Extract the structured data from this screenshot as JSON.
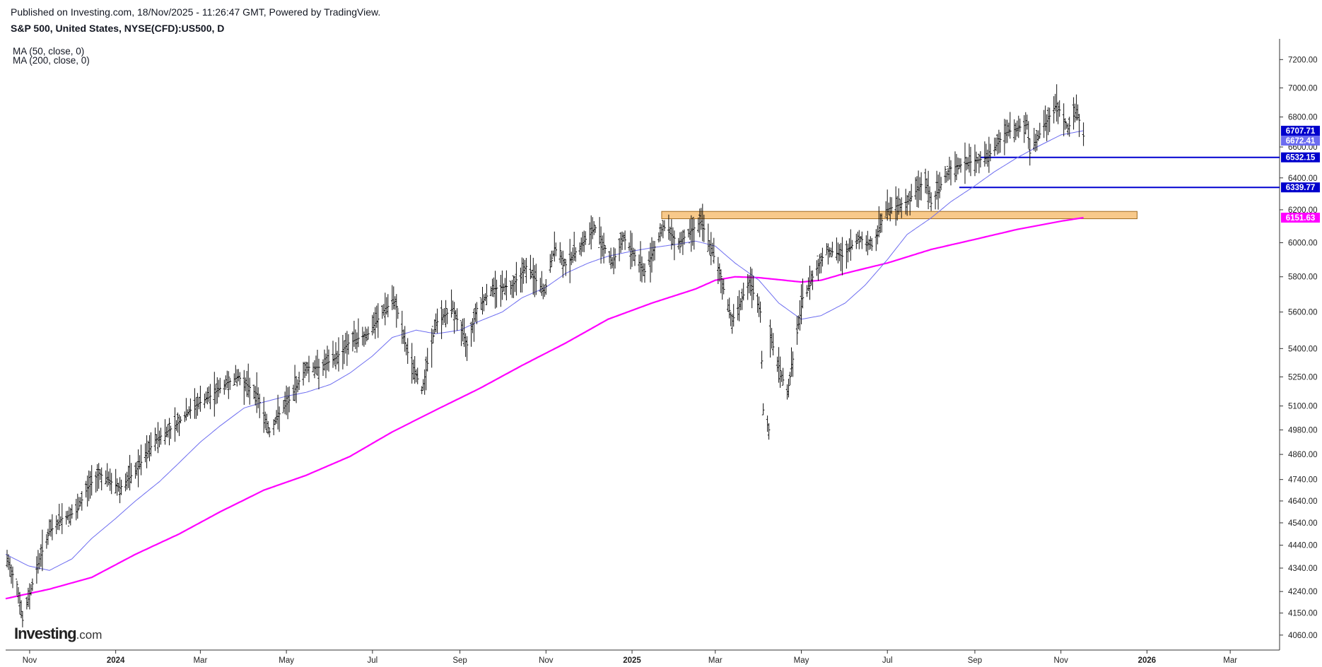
{
  "header": {
    "published": "Published on Investing.com, 18/Nov/2025 - 11:26:47 GMT, Powered by TradingView.",
    "symbol": "S&P 500, United States, NYSE(CFD):US500, D"
  },
  "legend": {
    "ma50": "MA (50, close, 0)",
    "ma200": "MA (200, close, 0)"
  },
  "brand": {
    "main": "Investing",
    "suffix": ".com"
  },
  "chart_data": {
    "type": "line",
    "title": "S&P 500, United States, NYSE(CFD):US500, D",
    "y_scale": "log",
    "ylim": [
      4000,
      7350
    ],
    "xlim": [
      "2023-10-15",
      "2026-04-05"
    ],
    "x_ticks": [
      {
        "date": "2023-11-01",
        "label": "Nov",
        "bold": false
      },
      {
        "date": "2024-01-01",
        "label": "2024",
        "bold": true
      },
      {
        "date": "2024-03-01",
        "label": "Mar",
        "bold": false
      },
      {
        "date": "2024-05-01",
        "label": "May",
        "bold": false
      },
      {
        "date": "2024-07-01",
        "label": "Jul",
        "bold": false
      },
      {
        "date": "2024-09-01",
        "label": "Sep",
        "bold": false
      },
      {
        "date": "2024-11-01",
        "label": "Nov",
        "bold": false
      },
      {
        "date": "2025-01-01",
        "label": "2025",
        "bold": true
      },
      {
        "date": "2025-03-01",
        "label": "Mar",
        "bold": false
      },
      {
        "date": "2025-05-01",
        "label": "May",
        "bold": false
      },
      {
        "date": "2025-07-01",
        "label": "Jul",
        "bold": false
      },
      {
        "date": "2025-09-01",
        "label": "Sep",
        "bold": false
      },
      {
        "date": "2025-11-01",
        "label": "Nov",
        "bold": false
      },
      {
        "date": "2026-01-01",
        "label": "2026",
        "bold": true
      },
      {
        "date": "2026-03-01",
        "label": "Mar",
        "bold": false
      }
    ],
    "y_ticks": [
      4060,
      4150,
      4240,
      4340,
      4440,
      4540,
      4640,
      4740,
      4860,
      4980,
      5100,
      5250,
      5400,
      5600,
      5800,
      6000,
      6200,
      6400,
      6600,
      6800,
      7000,
      7200
    ],
    "price_series": {
      "name": "S&P 500",
      "color": "#111111",
      "points": [
        [
          "2023-10-16",
          4370
        ],
        [
          "2023-10-23",
          4270
        ],
        [
          "2023-10-27",
          4120
        ],
        [
          "2023-11-01",
          4230
        ],
        [
          "2023-11-08",
          4380
        ],
        [
          "2023-11-15",
          4500
        ],
        [
          "2023-11-24",
          4560
        ],
        [
          "2023-12-04",
          4590
        ],
        [
          "2023-12-12",
          4700
        ],
        [
          "2023-12-20",
          4770
        ],
        [
          "2024-01-04",
          4700
        ],
        [
          "2024-01-15",
          4780
        ],
        [
          "2024-01-29",
          4930
        ],
        [
          "2024-02-12",
          5000
        ],
        [
          "2024-02-26",
          5100
        ],
        [
          "2024-03-08",
          5150
        ],
        [
          "2024-03-20",
          5220
        ],
        [
          "2024-03-28",
          5250
        ],
        [
          "2024-04-10",
          5160
        ],
        [
          "2024-04-19",
          4970
        ],
        [
          "2024-04-26",
          5060
        ],
        [
          "2024-05-03",
          5130
        ],
        [
          "2024-05-15",
          5300
        ],
        [
          "2024-05-24",
          5300
        ],
        [
          "2024-06-05",
          5350
        ],
        [
          "2024-06-14",
          5430
        ],
        [
          "2024-06-28",
          5480
        ],
        [
          "2024-07-10",
          5620
        ],
        [
          "2024-07-17",
          5660
        ],
        [
          "2024-07-25",
          5400
        ],
        [
          "2024-08-05",
          5180
        ],
        [
          "2024-08-15",
          5540
        ],
        [
          "2024-08-27",
          5620
        ],
        [
          "2024-09-06",
          5420
        ],
        [
          "2024-09-13",
          5620
        ],
        [
          "2024-09-24",
          5730
        ],
        [
          "2024-10-08",
          5750
        ],
        [
          "2024-10-18",
          5860
        ],
        [
          "2024-10-31",
          5710
        ],
        [
          "2024-11-07",
          5970
        ],
        [
          "2024-11-15",
          5870
        ],
        [
          "2024-11-27",
          6000
        ],
        [
          "2024-12-06",
          6090
        ],
        [
          "2024-12-18",
          5880
        ],
        [
          "2024-12-26",
          6030
        ],
        [
          "2025-01-10",
          5830
        ],
        [
          "2025-01-23",
          6100
        ],
        [
          "2025-02-03",
          6000
        ],
        [
          "2025-02-19",
          6130
        ],
        [
          "2025-03-03",
          5850
        ],
        [
          "2025-03-13",
          5550
        ],
        [
          "2025-03-25",
          5770
        ],
        [
          "2025-04-02",
          5600
        ],
        [
          "2025-04-04",
          5080
        ],
        [
          "2025-04-08",
          4980
        ],
        [
          "2025-04-09",
          5460
        ],
        [
          "2025-04-21",
          5160
        ],
        [
          "2025-05-02",
          5680
        ],
        [
          "2025-05-12",
          5850
        ],
        [
          "2025-05-19",
          5960
        ],
        [
          "2025-05-30",
          5920
        ],
        [
          "2025-06-11",
          6030
        ],
        [
          "2025-06-20",
          5980
        ],
        [
          "2025-06-30",
          6200
        ],
        [
          "2025-07-15",
          6250
        ],
        [
          "2025-07-28",
          6390
        ],
        [
          "2025-08-01",
          6240
        ],
        [
          "2025-08-14",
          6460
        ],
        [
          "2025-08-28",
          6500
        ],
        [
          "2025-09-10",
          6530
        ],
        [
          "2025-09-22",
          6690
        ],
        [
          "2025-10-08",
          6750
        ],
        [
          "2025-10-10",
          6560
        ],
        [
          "2025-10-20",
          6740
        ],
        [
          "2025-10-29",
          6890
        ],
        [
          "2025-11-06",
          6720
        ],
        [
          "2025-11-12",
          6850
        ],
        [
          "2025-11-17",
          6672
        ]
      ]
    },
    "ma50": {
      "name": "MA (50, close, 0)",
      "color": "#6d6df0",
      "points": [
        [
          "2023-10-15",
          4400
        ],
        [
          "2023-10-31",
          4350
        ],
        [
          "2023-11-15",
          4330
        ],
        [
          "2023-12-01",
          4380
        ],
        [
          "2023-12-15",
          4470
        ],
        [
          "2024-01-01",
          4560
        ],
        [
          "2024-01-15",
          4640
        ],
        [
          "2024-02-01",
          4730
        ],
        [
          "2024-02-15",
          4820
        ],
        [
          "2024-03-01",
          4920
        ],
        [
          "2024-03-15",
          5000
        ],
        [
          "2024-04-01",
          5090
        ],
        [
          "2024-04-15",
          5120
        ],
        [
          "2024-05-01",
          5150
        ],
        [
          "2024-05-15",
          5170
        ],
        [
          "2024-06-01",
          5210
        ],
        [
          "2024-06-15",
          5270
        ],
        [
          "2024-07-01",
          5360
        ],
        [
          "2024-07-15",
          5460
        ],
        [
          "2024-08-01",
          5500
        ],
        [
          "2024-08-15",
          5480
        ],
        [
          "2024-09-01",
          5500
        ],
        [
          "2024-09-15",
          5550
        ],
        [
          "2024-10-01",
          5600
        ],
        [
          "2024-10-15",
          5680
        ],
        [
          "2024-11-01",
          5740
        ],
        [
          "2024-11-15",
          5820
        ],
        [
          "2024-12-01",
          5880
        ],
        [
          "2024-12-15",
          5920
        ],
        [
          "2025-01-01",
          5950
        ],
        [
          "2025-01-15",
          5970
        ],
        [
          "2025-02-01",
          5990
        ],
        [
          "2025-02-15",
          6010
        ],
        [
          "2025-03-01",
          5980
        ],
        [
          "2025-03-15",
          5880
        ],
        [
          "2025-04-01",
          5780
        ],
        [
          "2025-04-15",
          5650
        ],
        [
          "2025-05-01",
          5560
        ],
        [
          "2025-05-15",
          5580
        ],
        [
          "2025-06-01",
          5650
        ],
        [
          "2025-06-15",
          5750
        ],
        [
          "2025-07-01",
          5900
        ],
        [
          "2025-07-15",
          6050
        ],
        [
          "2025-08-01",
          6150
        ],
        [
          "2025-08-15",
          6250
        ],
        [
          "2025-09-01",
          6350
        ],
        [
          "2025-09-15",
          6440
        ],
        [
          "2025-10-01",
          6530
        ],
        [
          "2025-10-15",
          6600
        ],
        [
          "2025-11-01",
          6680
        ],
        [
          "2025-11-17",
          6707.71
        ]
      ]
    },
    "ma200": {
      "name": "MA (200, close, 0)",
      "color": "#ff00ff",
      "points": [
        [
          "2023-10-15",
          4210
        ],
        [
          "2023-11-15",
          4250
        ],
        [
          "2023-12-15",
          4300
        ],
        [
          "2024-01-15",
          4400
        ],
        [
          "2024-02-15",
          4490
        ],
        [
          "2024-03-15",
          4590
        ],
        [
          "2024-04-15",
          4690
        ],
        [
          "2024-05-15",
          4760
        ],
        [
          "2024-06-15",
          4850
        ],
        [
          "2024-07-15",
          4970
        ],
        [
          "2024-08-15",
          5080
        ],
        [
          "2024-09-15",
          5190
        ],
        [
          "2024-10-15",
          5310
        ],
        [
          "2024-11-15",
          5430
        ],
        [
          "2024-12-15",
          5560
        ],
        [
          "2025-01-15",
          5650
        ],
        [
          "2025-02-15",
          5730
        ],
        [
          "2025-03-01",
          5780
        ],
        [
          "2025-03-15",
          5800
        ],
        [
          "2025-04-01",
          5795
        ],
        [
          "2025-05-01",
          5770
        ],
        [
          "2025-05-15",
          5780
        ],
        [
          "2025-06-01",
          5820
        ],
        [
          "2025-07-01",
          5880
        ],
        [
          "2025-08-01",
          5960
        ],
        [
          "2025-09-01",
          6020
        ],
        [
          "2025-10-01",
          6080
        ],
        [
          "2025-11-01",
          6130
        ],
        [
          "2025-11-17",
          6151.63
        ]
      ]
    },
    "zones": [
      {
        "name": "resistance-zone",
        "x_start": "2025-01-22",
        "x_end": "2025-12-25",
        "y_low": 6145,
        "y_high": 6190,
        "fill": "#f8c98a",
        "stroke": "#a06a20"
      }
    ],
    "levels": [
      {
        "name": "support-6532",
        "value": 6532.15,
        "x_start": "2025-09-05",
        "color": "#0000d0"
      },
      {
        "name": "support-6339",
        "value": 6339.77,
        "x_start": "2025-08-21",
        "color": "#0000d0"
      }
    ],
    "price_labels": [
      {
        "name": "price-tag-ma50",
        "value": "6707.71",
        "y": 6707.71,
        "bg": "#0000cc",
        "fg": "#ffffff"
      },
      {
        "name": "price-tag-last",
        "value": "6672.41",
        "y": 6672.41,
        "bg": "#6d6df0",
        "fg": "#ffffff"
      },
      {
        "name": "price-tag-6532",
        "value": "6532.15",
        "y": 6532.15,
        "bg": "#0000cc",
        "fg": "#ffffff"
      },
      {
        "name": "price-tag-6339",
        "value": "6339.77",
        "y": 6339.77,
        "bg": "#0000cc",
        "fg": "#ffffff"
      },
      {
        "name": "price-tag-ma200",
        "value": "6151.63",
        "y": 6151.63,
        "bg": "#ff00ff",
        "fg": "#ffffff"
      }
    ]
  }
}
